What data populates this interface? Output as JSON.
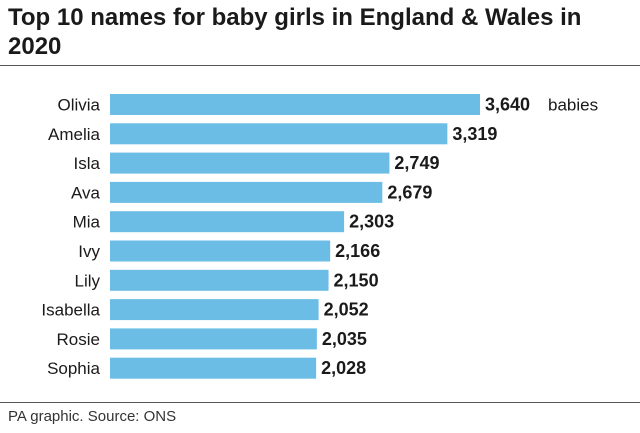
{
  "title": "Top 10 names for baby girls in England & Wales in 2020",
  "source": "PA graphic. Source: ONS",
  "bar_color": "#6cbde6",
  "chart_data": {
    "type": "bar",
    "orientation": "horizontal",
    "categories": [
      "Olivia",
      "Amelia",
      "Isla",
      "Ava",
      "Mia",
      "Ivy",
      "Lily",
      "Isabella",
      "Rosie",
      "Sophia"
    ],
    "values": [
      3640,
      3319,
      2749,
      2679,
      2303,
      2166,
      2150,
      2052,
      2035,
      2028
    ],
    "value_labels": [
      "3,640",
      "3,319",
      "2,749",
      "2,679",
      "2,303",
      "2,166",
      "2,150",
      "2,052",
      "2,035",
      "2,028"
    ],
    "first_label_suffix": "babies",
    "grid": false,
    "legend": "none"
  }
}
